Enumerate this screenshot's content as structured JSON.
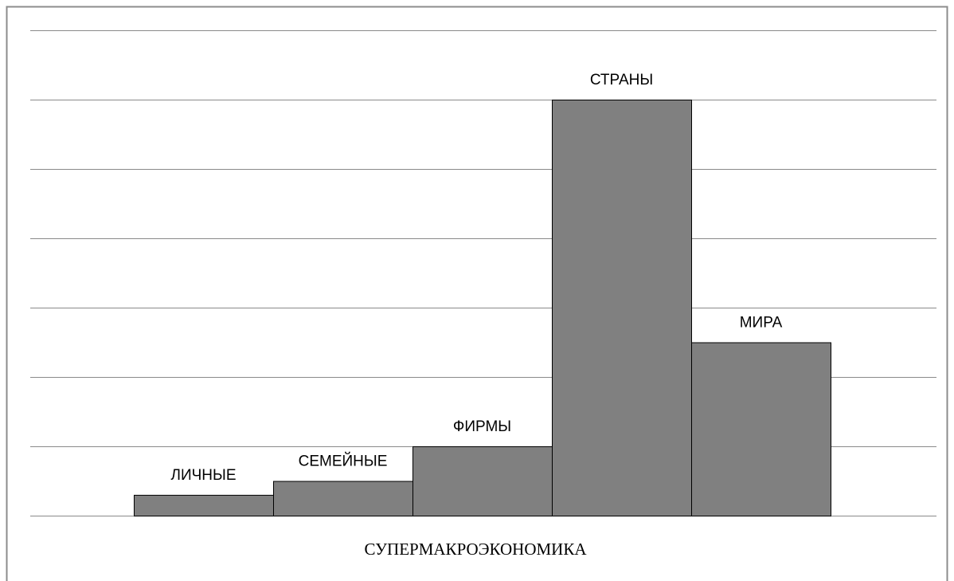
{
  "chart_data": {
    "type": "bar",
    "categories": [
      "ЛИЧНЫЕ",
      "СЕМЕЙНЫЕ",
      "ФИРМЫ",
      "СТРАНЫ",
      "МИРА"
    ],
    "values": [
      0.3,
      0.5,
      1,
      6,
      2.5
    ],
    "color": "#808080",
    "x_label": "СУПЕРМАКРОЭКОНОМИКА",
    "ylim": [
      0,
      7
    ],
    "yticks": [
      0,
      1,
      2,
      3,
      4,
      5,
      6,
      7
    ],
    "grid": true
  }
}
